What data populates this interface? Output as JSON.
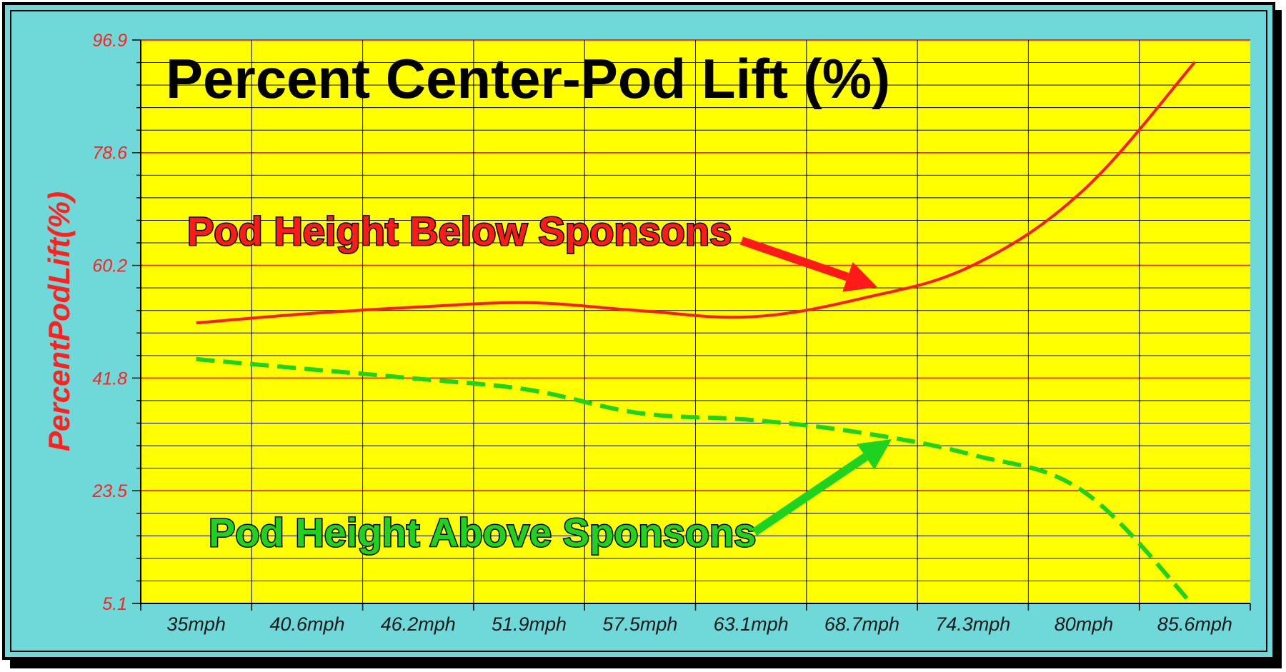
{
  "colors": {
    "background": "#6fd8d8",
    "plot_area": "#ffff00",
    "frame": "#000000",
    "grid_major": "#ff0000",
    "grid_minor": "#000000",
    "series_below": "#ff1a1a",
    "series_above": "#1ed31e",
    "tick_y": "#ff2020",
    "tick_x": "#1a1a1a"
  },
  "chart_data": {
    "type": "line",
    "title": "Percent Center-Pod Lift (%)",
    "xlabel": "",
    "ylabel": "PercentPodLift(%)",
    "categories": [
      "35mph",
      "40.6mph",
      "46.2mph",
      "51.9mph",
      "57.5mph",
      "63.1mph",
      "68.7mph",
      "74.3mph",
      "80mph",
      "85.6mph"
    ],
    "y_ticks": [
      "5.1",
      "23.5",
      "41.8",
      "60.2",
      "78.6",
      "96.9"
    ],
    "ylim": [
      5.1,
      96.9
    ],
    "grid": true,
    "series": [
      {
        "key": "below",
        "line_style": "solid",
        "values": [
          50.8,
          52.3,
          53.4,
          54.1,
          52.8,
          51.8,
          54.8,
          60.2,
          72.5,
          93.3
        ]
      },
      {
        "key": "above",
        "line_style": "dashed",
        "values": [
          44.9,
          43.3,
          41.7,
          39.9,
          36.1,
          35.0,
          32.9,
          29.3,
          23.3,
          4.5
        ]
      }
    ],
    "annotations": [
      {
        "text": "Pod Height Below Sponsons",
        "series": "below",
        "color": "#ff1a1a"
      },
      {
        "text": "Pod Height Above Sponsons",
        "series": "above",
        "color": "#1ed31e"
      }
    ]
  }
}
